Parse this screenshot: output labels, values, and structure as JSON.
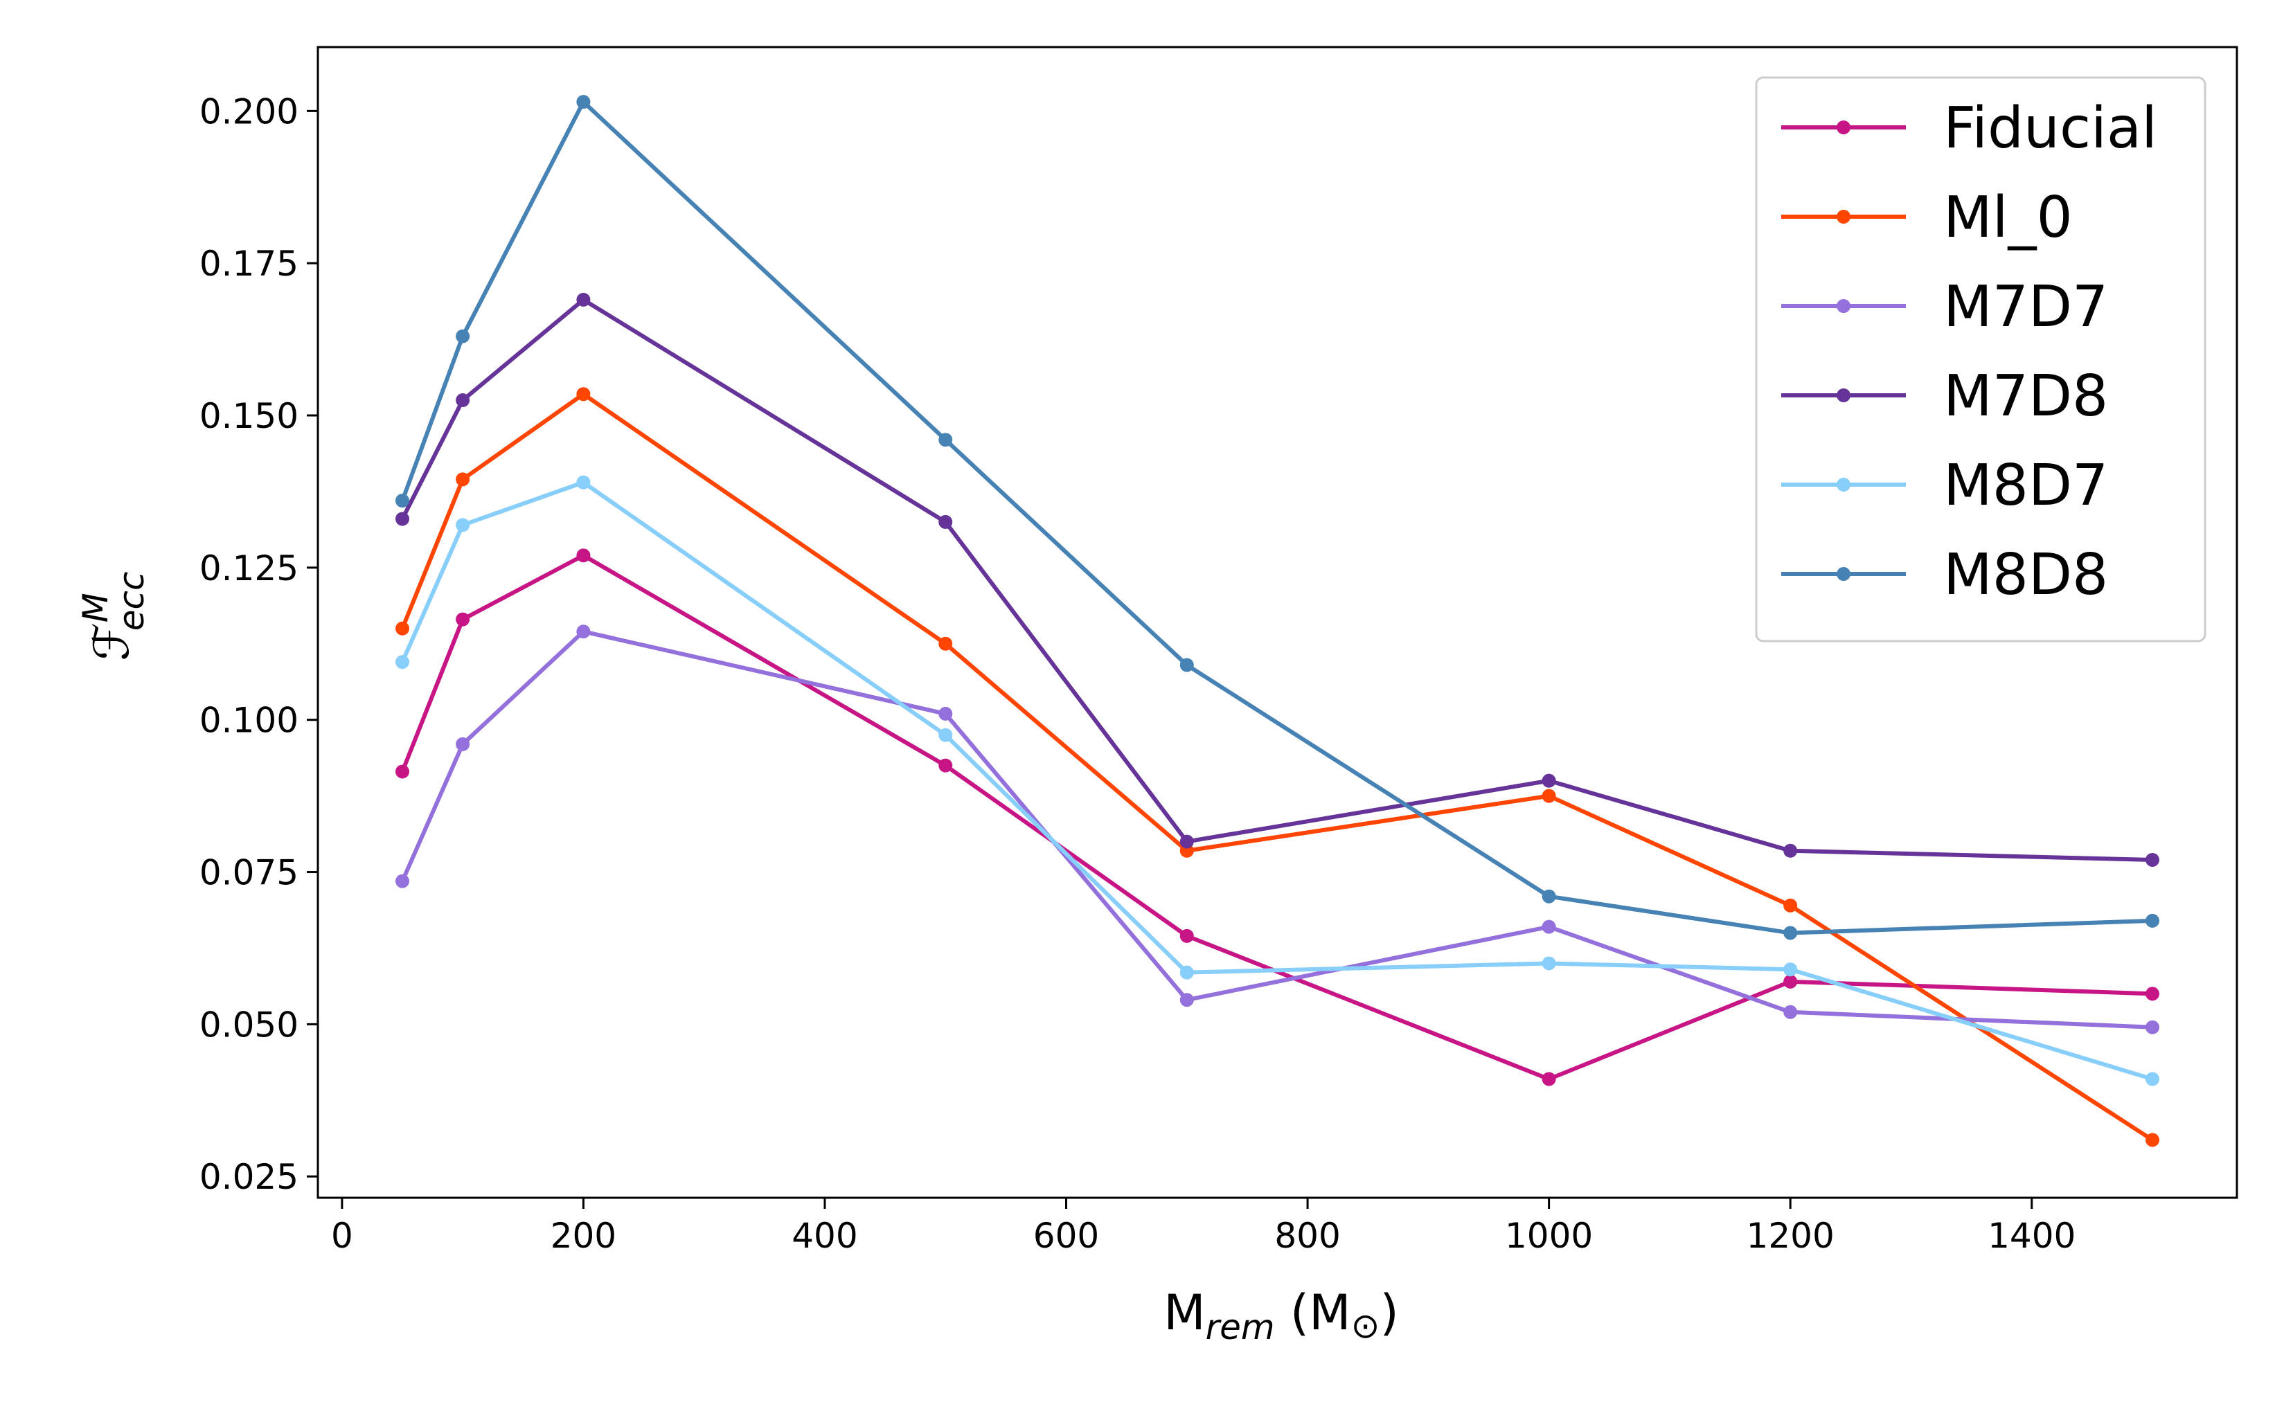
{
  "chart_data": {
    "type": "line",
    "title": "",
    "xlabel": {
      "main": "M",
      "sub": "rem",
      "unit_open": " (M",
      "unit_symbol": "⊙",
      "unit_close": ")"
    },
    "ylabel": {
      "main": "ℱ",
      "sup": "M",
      "sub": "ecc"
    },
    "xlim": [
      -20,
      1570
    ],
    "ylim": [
      0.0215,
      0.2105
    ],
    "xticks": [
      0,
      200,
      400,
      600,
      800,
      1000,
      1200,
      1400
    ],
    "xtick_labels": [
      "0",
      "200",
      "400",
      "600",
      "800",
      "1000",
      "1200",
      "1400"
    ],
    "yticks": [
      0.025,
      0.05,
      0.075,
      0.1,
      0.125,
      0.15,
      0.175,
      0.2
    ],
    "ytick_labels": [
      "0.025",
      "0.050",
      "0.075",
      "0.100",
      "0.125",
      "0.150",
      "0.175",
      "0.200"
    ],
    "grid": false,
    "legend_position": "top-right",
    "x": [
      50,
      100,
      200,
      500,
      700,
      1000,
      1200,
      1500
    ],
    "series": [
      {
        "name": "Fiducial",
        "color": "#c71585",
        "values": [
          0.0915,
          0.1165,
          0.127,
          0.0925,
          0.0645,
          0.041,
          0.057,
          0.055
        ]
      },
      {
        "name": "Ml_0",
        "color": "#ff4500",
        "values": [
          0.115,
          0.1395,
          0.1535,
          0.1125,
          0.0785,
          0.0875,
          0.0695,
          0.031
        ]
      },
      {
        "name": "M7D7",
        "color": "#9370db",
        "values": [
          0.0735,
          0.096,
          0.1145,
          0.101,
          0.054,
          0.066,
          0.052,
          0.0495
        ]
      },
      {
        "name": "M7D8",
        "color": "#663399",
        "values": [
          0.133,
          0.1525,
          0.169,
          0.1325,
          0.08,
          0.09,
          0.0785,
          0.077
        ]
      },
      {
        "name": "M8D7",
        "color": "#87cefa",
        "values": [
          0.1095,
          0.132,
          0.139,
          0.0975,
          0.0585,
          0.06,
          0.059,
          0.041
        ]
      },
      {
        "name": "M8D8",
        "color": "#4682b4",
        "values": [
          0.136,
          0.163,
          0.2015,
          0.146,
          0.109,
          0.071,
          0.065,
          0.067
        ]
      }
    ]
  }
}
